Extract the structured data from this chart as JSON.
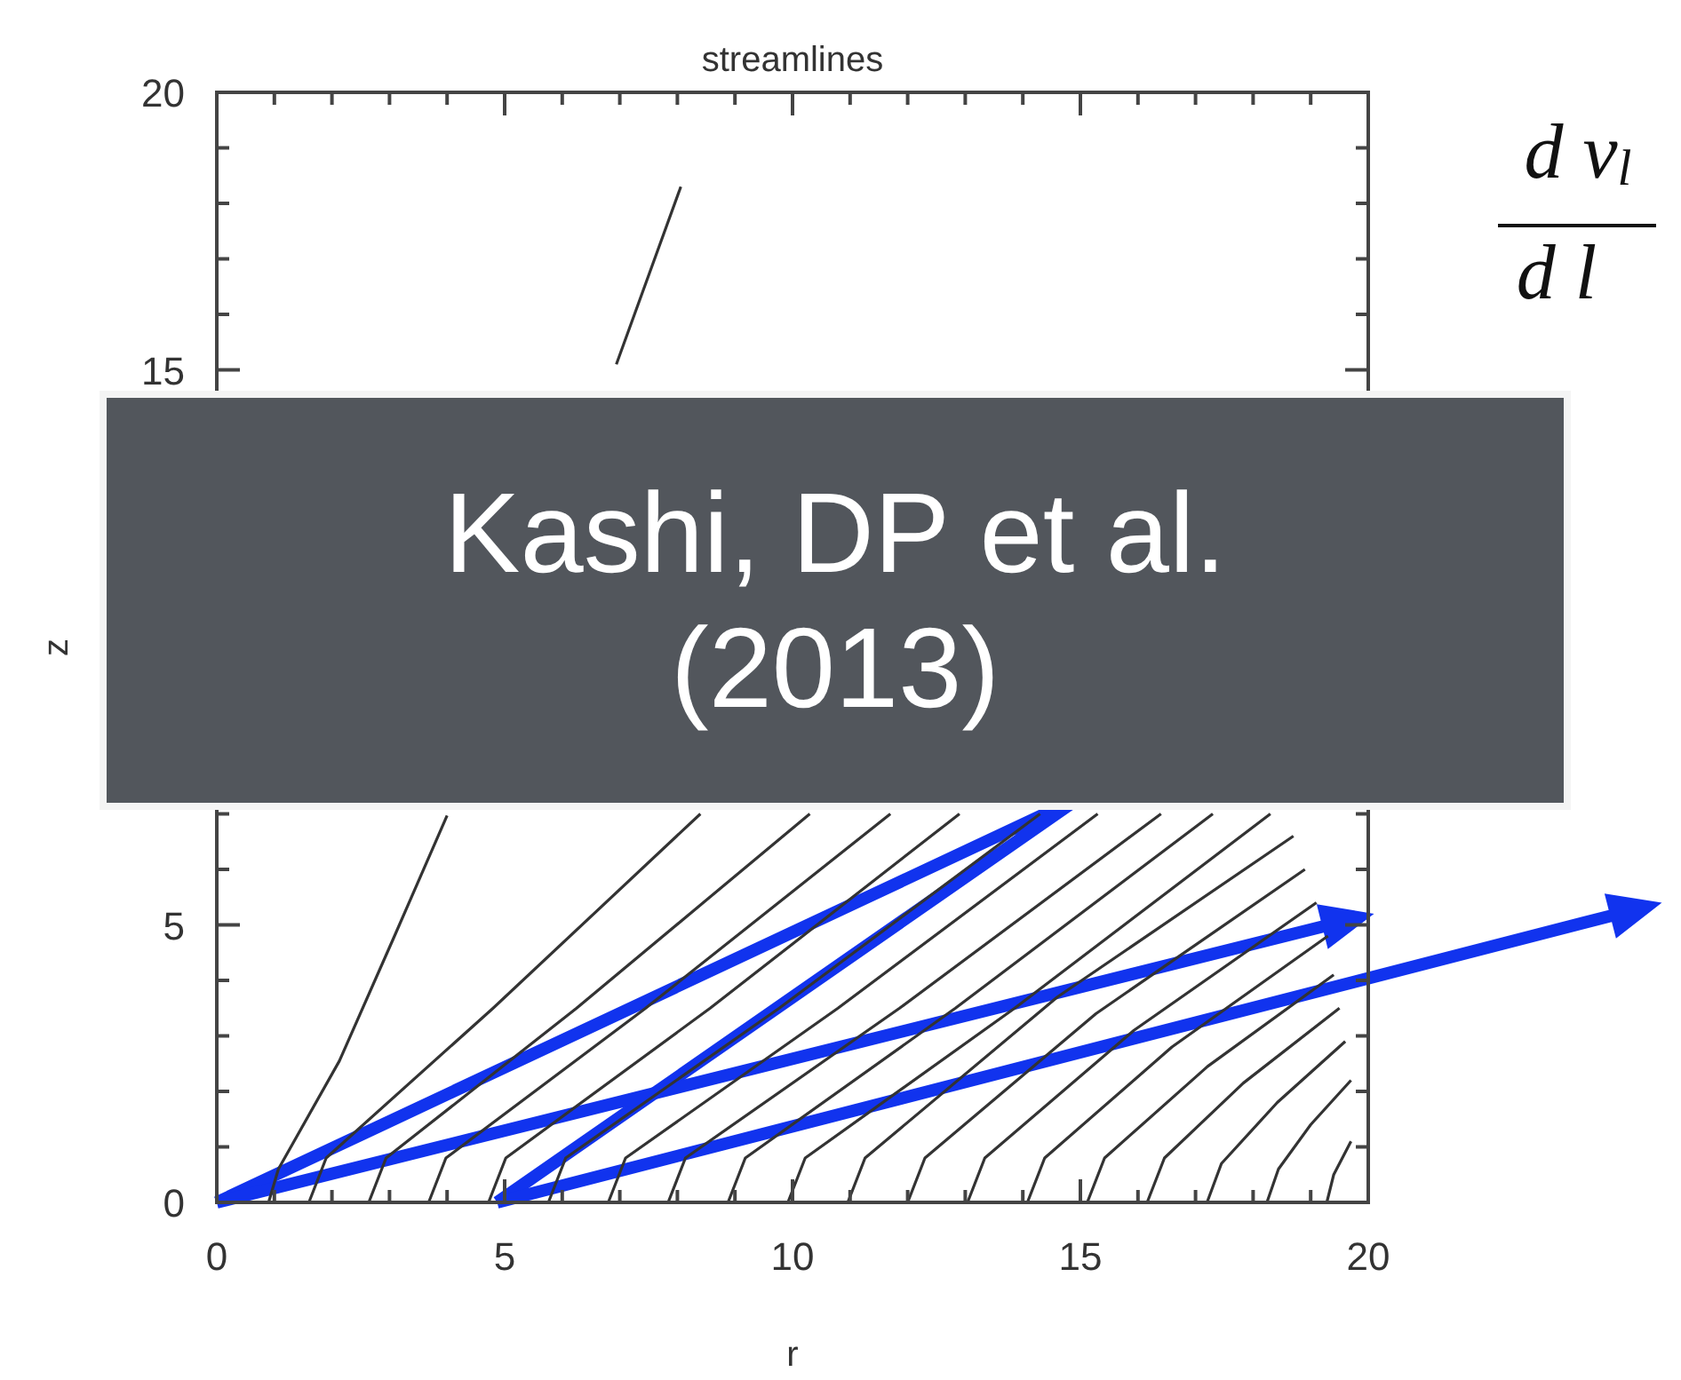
{
  "chart_data": {
    "type": "line",
    "title": "streamlines",
    "xlabel": "r",
    "ylabel": "z",
    "xlim": [
      0,
      20
    ],
    "ylim": [
      0,
      20
    ],
    "xticks": [
      0,
      {
        "value": 1,
        "label": null
      },
      {
        "value": 2,
        "label": null
      },
      {
        "value": 3,
        "label": null
      },
      {
        "value": 4,
        "label": null
      },
      5,
      {
        "value": 6,
        "label": null
      },
      {
        "value": 7,
        "label": null
      },
      {
        "value": 8,
        "label": null
      },
      {
        "value": 9,
        "label": null
      },
      10,
      {
        "value": 11,
        "label": null
      },
      {
        "value": 12,
        "label": null
      },
      {
        "value": 13,
        "label": null
      },
      {
        "value": 14,
        "label": null
      },
      15,
      {
        "value": 16,
        "label": null
      },
      {
        "value": 17,
        "label": null
      },
      {
        "value": 18,
        "label": null
      },
      {
        "value": 19,
        "label": null
      },
      20
    ],
    "yticks": [
      0,
      {
        "value": 1,
        "label": null
      },
      {
        "value": 2,
        "label": null
      },
      {
        "value": 3,
        "label": null
      },
      {
        "value": 4,
        "label": null
      },
      5,
      {
        "value": 6,
        "label": null
      },
      {
        "value": 7,
        "label": null
      },
      {
        "value": 8,
        "label": null
      },
      {
        "value": 9,
        "label": null
      },
      {
        "value": 10,
        "label": null
      },
      {
        "value": 11,
        "label": null
      },
      {
        "value": 12,
        "label": null
      },
      {
        "value": 13,
        "label": null
      },
      {
        "value": 14,
        "label": null
      },
      15,
      {
        "value": 16,
        "label": null
      },
      {
        "value": 17,
        "label": null
      },
      {
        "value": 18,
        "label": null
      },
      {
        "value": 19,
        "label": null
      },
      20
    ],
    "grid": false,
    "marker": "none",
    "line_style": "solid",
    "annotations": [
      "Kashi, DP et al. (2013)",
      "d v$_{l}$",
      "d l"
    ],
    "series": [
      {
        "color": "#333333",
        "x": [
          0.9,
          1.07,
          2.13,
          3.07,
          4.0,
          5.5,
          6.94,
          8.06
        ],
        "values": [
          0,
          0.6,
          2.55,
          4.76,
          6.97,
          null,
          15.1,
          18.3
        ]
      },
      {
        "color": "#333333",
        "x": [
          1.6,
          1.9,
          4.8,
          8.4
        ],
        "values": [
          0,
          0.8,
          3.5,
          7.0
        ]
      },
      {
        "color": "#333333",
        "x": [
          2.64,
          2.94,
          6.25,
          10.3
        ],
        "values": [
          0,
          0.8,
          3.5,
          7.0
        ]
      },
      {
        "color": "#333333",
        "x": [
          3.68,
          3.98,
          7.45,
          11.7
        ],
        "values": [
          0,
          0.8,
          3.5,
          7.0
        ]
      },
      {
        "color": "#333333",
        "x": [
          4.72,
          5.02,
          8.57,
          12.9
        ],
        "values": [
          0,
          0.8,
          3.5,
          7.0
        ]
      },
      {
        "color": "#333333",
        "x": [
          5.76,
          6.06,
          9.77,
          14.3
        ],
        "values": [
          0,
          0.8,
          3.5,
          7.0
        ]
      },
      {
        "color": "#333333",
        "x": [
          6.8,
          7.1,
          10.79,
          15.3
        ],
        "values": [
          0,
          0.8,
          3.5,
          7.0
        ]
      },
      {
        "color": "#333333",
        "x": [
          7.84,
          8.14,
          11.86,
          16.4
        ],
        "values": [
          0,
          0.8,
          3.5,
          7.0
        ]
      },
      {
        "color": "#333333",
        "x": [
          8.88,
          9.18,
          12.83,
          17.3
        ],
        "values": [
          0,
          0.8,
          3.5,
          7.0
        ]
      },
      {
        "color": "#333333",
        "x": [
          9.92,
          10.22,
          13.86,
          18.3
        ],
        "values": [
          0,
          0.8,
          3.5,
          7.0
        ]
      },
      {
        "color": "#333333",
        "x": [
          10.96,
          11.26,
          14.6,
          18.7
        ],
        "values": [
          0,
          0.8,
          3.7,
          6.6
        ]
      },
      {
        "color": "#333333",
        "x": [
          12.0,
          12.3,
          15.27,
          18.9
        ],
        "values": [
          0,
          0.8,
          3.4,
          6.0
        ]
      },
      {
        "color": "#333333",
        "x": [
          13.04,
          13.34,
          15.93,
          19.1
        ],
        "values": [
          0,
          0.8,
          3.1,
          5.4
        ]
      },
      {
        "color": "#333333",
        "x": [
          14.08,
          14.38,
          16.59,
          19.3
        ],
        "values": [
          0,
          0.8,
          2.8,
          4.8
        ]
      },
      {
        "color": "#333333",
        "x": [
          15.12,
          15.42,
          17.21,
          19.4
        ],
        "values": [
          0,
          0.8,
          2.45,
          4.1
        ]
      },
      {
        "color": "#333333",
        "x": [
          16.16,
          16.46,
          17.83,
          19.5
        ],
        "values": [
          0,
          0.8,
          2.15,
          3.5
        ]
      },
      {
        "color": "#333333",
        "x": [
          17.2,
          17.45,
          18.42,
          19.6
        ],
        "values": [
          0,
          0.7,
          1.8,
          2.9
        ]
      },
      {
        "color": "#333333",
        "x": [
          18.24,
          18.44,
          19.0,
          19.7
        ],
        "values": [
          0,
          0.6,
          1.4,
          2.2
        ]
      },
      {
        "color": "#333333",
        "x": [
          19.28,
          19.4,
          19.7
        ],
        "values": [
          0,
          0.5,
          1.1
        ]
      }
    ]
  }
}
